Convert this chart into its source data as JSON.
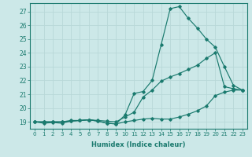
{
  "xlabel": "Humidex (Indice chaleur)",
  "ylabel": "",
  "background_color": "#cce8e8",
  "grid_color": "#b8d8d8",
  "line_color": "#1a7a6e",
  "xlim": [
    -0.5,
    23.5
  ],
  "ylim": [
    18.5,
    27.6
  ],
  "yticks": [
    19,
    20,
    21,
    22,
    23,
    24,
    25,
    26,
    27
  ],
  "xticks": [
    0,
    1,
    2,
    3,
    4,
    5,
    6,
    7,
    8,
    9,
    10,
    11,
    12,
    13,
    14,
    15,
    16,
    17,
    18,
    19,
    20,
    21,
    22,
    23
  ],
  "line1_x": [
    0,
    1,
    2,
    3,
    4,
    5,
    6,
    7,
    8,
    9,
    10,
    11,
    12,
    13,
    14,
    15,
    16,
    17,
    18,
    19,
    20,
    21,
    22,
    23
  ],
  "line1_y": [
    19,
    18.9,
    18.95,
    18.9,
    19.05,
    19.1,
    19.15,
    19.05,
    18.9,
    18.85,
    19.0,
    19.1,
    19.2,
    19.25,
    19.2,
    19.2,
    19.35,
    19.55,
    19.8,
    20.15,
    20.9,
    21.15,
    21.3,
    21.3
  ],
  "line2_x": [
    0,
    1,
    2,
    3,
    4,
    5,
    6,
    7,
    8,
    9,
    10,
    11,
    12,
    13,
    14,
    15,
    16,
    17,
    18,
    19,
    20,
    21,
    22,
    23
  ],
  "line2_y": [
    19,
    19.0,
    19.0,
    19.0,
    19.1,
    19.1,
    19.15,
    19.1,
    19.05,
    19.0,
    19.35,
    19.7,
    20.8,
    21.3,
    21.95,
    22.25,
    22.5,
    22.8,
    23.1,
    23.6,
    24.0,
    21.55,
    21.4,
    21.3
  ],
  "line3_x": [
    0,
    1,
    2,
    3,
    4,
    5,
    6,
    7,
    8,
    9,
    10,
    11,
    12,
    13,
    14,
    15,
    16,
    17,
    18,
    19,
    20,
    21,
    22,
    23
  ],
  "line3_y": [
    19,
    19.0,
    19.0,
    19.0,
    19.05,
    19.1,
    19.15,
    19.05,
    18.9,
    18.85,
    19.5,
    21.05,
    21.2,
    22.0,
    24.6,
    27.2,
    27.35,
    26.5,
    25.8,
    25.0,
    24.4,
    23.0,
    21.65,
    21.3
  ]
}
